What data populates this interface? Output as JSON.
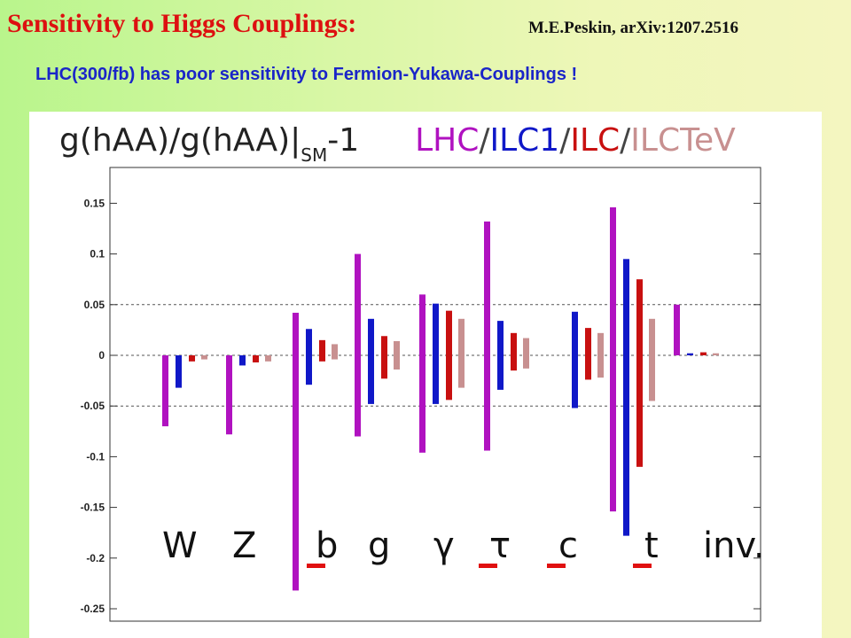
{
  "slide": {
    "title": "Sensitivity to Higgs Couplings:",
    "citation": "M.E.Peskin, arXiv:1207.2516",
    "subtitle": "LHC(300/fb) has poor sensitivity to Fermion-Yukawa-Couplings !"
  },
  "chart_data": {
    "type": "bar",
    "title_parts": {
      "ratio": "g(hAA)/g(hAA)|",
      "sub": "SM",
      "suffix": "-1",
      "sep": "/",
      "labels": [
        "LHC",
        "ILC1",
        "ILC",
        "ILCTeV"
      ]
    },
    "categories": [
      "W",
      "Z",
      "b",
      "g",
      "γ",
      "τ",
      "c",
      "t",
      "inv."
    ],
    "highlighted_categories": [
      "b",
      "τ",
      "c",
      "t"
    ],
    "ylim": [
      -0.25,
      0.2
    ],
    "yticks": [
      0.15,
      0.1,
      0.05,
      0,
      -0.05,
      -0.1,
      -0.15,
      -0.2,
      -0.25
    ],
    "ytick_labels": [
      "0.15",
      "0.1",
      "0.05",
      "0",
      "-0.05",
      "-0.1",
      "-0.15",
      "-0.2",
      "-0.25"
    ],
    "grid_dashed_at": [
      0.05,
      0,
      -0.05
    ],
    "series": [
      {
        "name": "LHC",
        "color": "#b012c0",
        "ranges": [
          [
            -0.07,
            0
          ],
          [
            -0.078,
            0
          ],
          [
            -0.232,
            0.042
          ],
          [
            -0.08,
            0.1
          ],
          [
            -0.096,
            0.06
          ],
          [
            -0.094,
            0.132
          ],
          null,
          [
            -0.154,
            0.146
          ],
          [
            0,
            0.05
          ]
        ]
      },
      {
        "name": "ILC1",
        "color": "#1018c8",
        "ranges": [
          [
            -0.032,
            0
          ],
          [
            -0.01,
            0
          ],
          [
            -0.029,
            0.026
          ],
          [
            -0.048,
            0.036
          ],
          [
            -0.048,
            0.051
          ],
          [
            -0.034,
            0.034
          ],
          [
            -0.052,
            0.043
          ],
          [
            -0.178,
            0.095
          ],
          [
            0,
            0.002
          ]
        ]
      },
      {
        "name": "ILC",
        "color": "#c81010",
        "ranges": [
          [
            -0.006,
            0
          ],
          [
            -0.007,
            0
          ],
          [
            -0.006,
            0.015
          ],
          [
            -0.023,
            0.019
          ],
          [
            -0.044,
            0.044
          ],
          [
            -0.015,
            0.022
          ],
          [
            -0.024,
            0.027
          ],
          [
            -0.11,
            0.075
          ],
          [
            0,
            0.003
          ]
        ]
      },
      {
        "name": "ILCTeV",
        "color": "#c89090",
        "ranges": [
          [
            -0.004,
            0
          ],
          [
            -0.006,
            0
          ],
          [
            -0.004,
            0.011
          ],
          [
            -0.014,
            0.014
          ],
          [
            -0.032,
            0.036
          ],
          [
            -0.013,
            0.017
          ],
          [
            -0.022,
            0.022
          ],
          [
            -0.045,
            0.036
          ],
          [
            0,
            0.002
          ]
        ]
      }
    ],
    "grid": "dashed lines at 0.05, 0, -0.05",
    "legend": "color-coded series names in title"
  }
}
